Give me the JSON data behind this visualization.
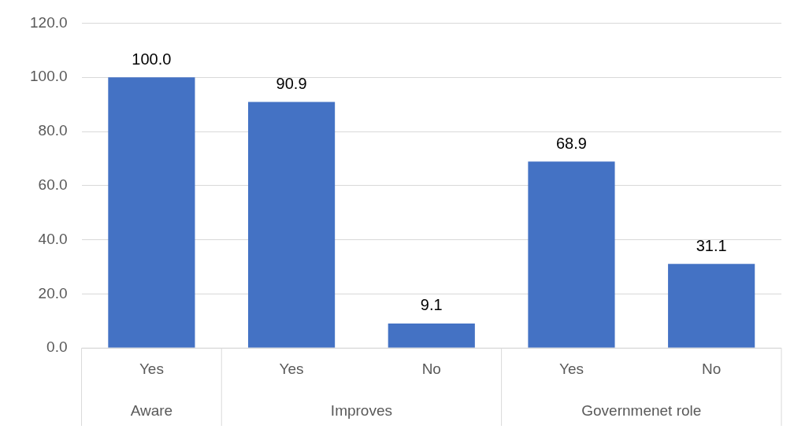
{
  "chart_data": {
    "type": "bar",
    "categories": [
      "Yes",
      "Yes",
      "No",
      "Yes",
      "No"
    ],
    "values": [
      100.0,
      90.9,
      9.1,
      68.9,
      31.1
    ],
    "color": "#4472c4",
    "ylim": [
      0,
      120
    ],
    "yticks": [
      {
        "value": 0,
        "label": "0.0"
      },
      {
        "value": 20,
        "label": "20.0"
      },
      {
        "value": 40,
        "label": "40.0"
      },
      {
        "value": 60,
        "label": "60.0"
      },
      {
        "value": 80,
        "label": "80.0"
      },
      {
        "value": 100,
        "label": "100.0"
      },
      {
        "value": 120,
        "label": "120.0"
      }
    ],
    "value_labels": [
      "100.0",
      "90.9",
      "9.1",
      "68.9",
      "31.1"
    ],
    "annotations": [
      "Aware",
      "Improves",
      "Governmenet role"
    ],
    "grid": "y",
    "legend": false
  }
}
